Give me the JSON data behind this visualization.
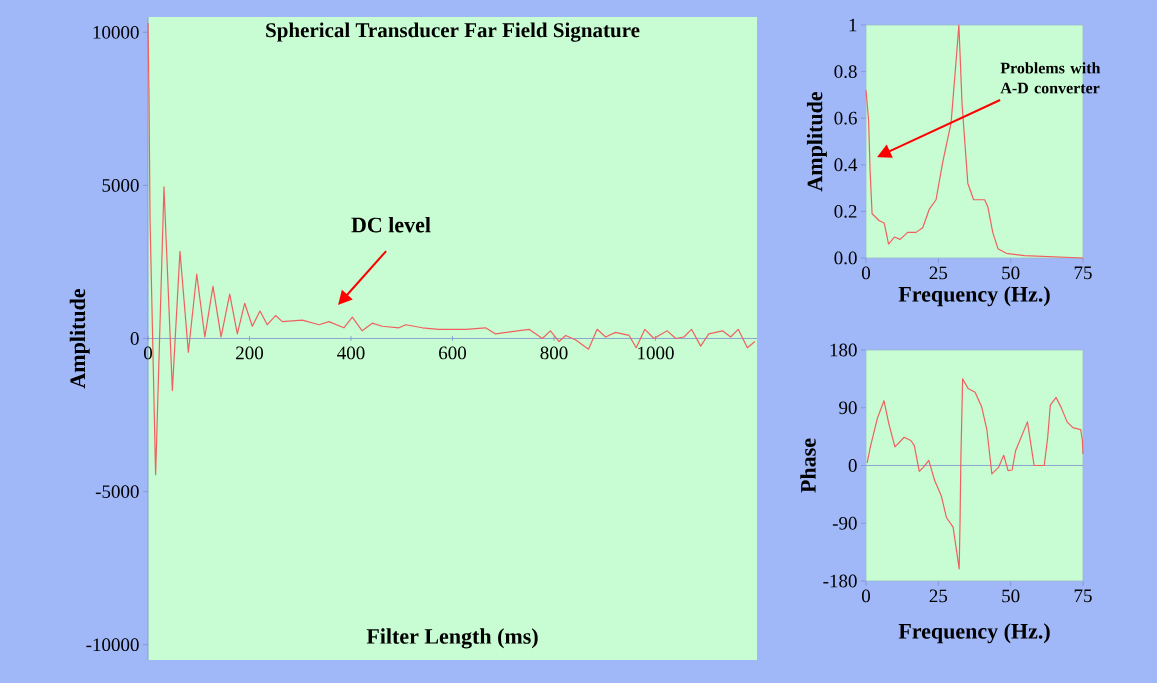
{
  "chart_data": [
    {
      "type": "line",
      "title": "Spherical Transducer Far Field Signature",
      "xlabel": "Filter Length (ms)",
      "ylabel": "Amplitude",
      "color": "#f06060",
      "x": [
        0,
        2,
        4,
        15,
        31.5,
        48,
        63,
        79.5,
        96,
        112,
        128,
        144,
        161,
        176,
        190.5,
        205.5,
        220.7,
        235,
        251.5,
        264.6,
        304,
        337,
        356.6,
        386,
        402.6,
        422,
        442,
        461.7,
        494.6,
        508,
        540.5,
        573,
        626,
        665,
        685,
        751,
        777,
        793,
        810,
        823,
        843,
        868,
        885,
        901.8,
        921,
        948,
        962,
        979,
        997,
        1023,
        1040,
        1056,
        1071,
        1089,
        1105,
        1132,
        1148,
        1163,
        1181,
        1196
      ],
      "values": [
        10300,
        7900,
        3900,
        -4450,
        4950,
        -1700,
        2850,
        -450,
        2100,
        50,
        1700,
        50,
        1450,
        150,
        1150,
        400,
        900,
        450,
        750,
        550,
        600,
        450,
        550,
        350,
        700,
        250,
        500,
        400,
        350,
        450,
        350,
        300,
        300,
        350,
        150,
        300,
        0,
        250,
        -100,
        100,
        -50,
        -350,
        300,
        50,
        200,
        100,
        -300,
        300,
        0,
        250,
        0,
        50,
        300,
        -250,
        150,
        250,
        50,
        300,
        -300,
        -100
      ],
      "xlim": [
        0,
        1200
      ],
      "ylim": [
        -10500,
        10500
      ],
      "xticks": [
        0,
        200,
        400,
        600,
        800,
        1000
      ],
      "yticks": [
        -10000,
        -5000,
        0,
        5000,
        10000
      ],
      "annotations": [
        "DC level"
      ]
    },
    {
      "type": "line",
      "xlabel": "Frequency (Hz.)",
      "ylabel": "Amplitude",
      "color": "#f06060",
      "x": [
        0,
        0.9,
        1.4,
        2.1,
        4.6,
        6.3,
        7.8,
        9.8,
        11.8,
        14.4,
        17.3,
        19.6,
        21.9,
        24.2,
        26.5,
        29.4,
        30.9,
        32.1,
        33.2,
        35.2,
        37.2,
        41.0,
        42.1,
        43.8,
        45.6,
        48.5,
        54.8,
        75
      ],
      "values": [
        0.72,
        0.59,
        0.38,
        0.19,
        0.16,
        0.15,
        0.06,
        0.09,
        0.08,
        0.11,
        0.11,
        0.13,
        0.21,
        0.25,
        0.41,
        0.58,
        0.81,
        1.0,
        0.66,
        0.32,
        0.25,
        0.25,
        0.22,
        0.11,
        0.04,
        0.02,
        0.01,
        0.0
      ],
      "xlim": [
        0,
        75
      ],
      "ylim": [
        0,
        1
      ],
      "xticks": [
        0,
        25,
        50,
        75
      ],
      "yticks": [
        {
          "value": 0,
          "label": "0.0"
        },
        {
          "value": 0.2,
          "label": "0.2"
        },
        {
          "value": 0.4,
          "label": "0.4"
        },
        {
          "value": 0.6,
          "label": "0.6"
        },
        {
          "value": 0.8,
          "label": "0.8"
        },
        1
      ],
      "annotations": [
        "Problems with A-D converter"
      ]
    },
    {
      "type": "line",
      "xlabel": "Frequency (Hz.)",
      "ylabel": "Phase",
      "color": "#f06060",
      "x": [
        0.4,
        1.5,
        3.9,
        6.2,
        7.9,
        10,
        13.2,
        15.5,
        16.7,
        18.4,
        19.8,
        21.7,
        23.7,
        26,
        27.8,
        30.1,
        31.3,
        32.2,
        32.5,
        32.8,
        33.4,
        35.3,
        37.7,
        40,
        41.8,
        43.5,
        45.8,
        47.6,
        49.1,
        50.5,
        51.7,
        55.8,
        58.1,
        61.6,
        62.8,
        63.7,
        65.7,
        67.4,
        69.5,
        71.5,
        74.2,
        74.8,
        75
      ],
      "values": [
        4,
        29,
        73,
        101,
        65,
        29,
        44,
        39,
        31,
        -9,
        -3,
        8,
        -23,
        -47,
        -81,
        -96,
        -133,
        -161,
        -88,
        13,
        135,
        120,
        114,
        91,
        55,
        -13,
        -3,
        16,
        -8,
        -7,
        23,
        68,
        0,
        0,
        44,
        94,
        106,
        91,
        68,
        59,
        56,
        39,
        18
      ],
      "xlim": [
        0,
        75
      ],
      "ylim": [
        -180,
        180
      ],
      "xticks": [
        0,
        25,
        50,
        75
      ],
      "yticks": [
        -180,
        -90,
        0,
        90,
        180
      ],
      "ref_lines": [
        {
          "axis": "y",
          "value": 0,
          "color": "#7f8fd0"
        }
      ]
    }
  ]
}
